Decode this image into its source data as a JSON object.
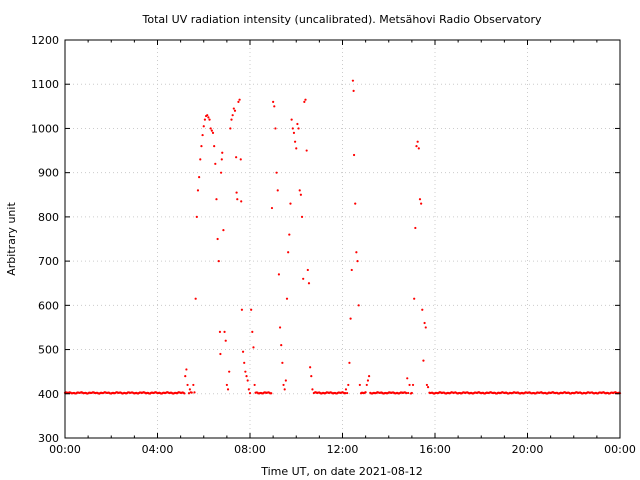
{
  "chart_data": {
    "type": "scatter",
    "title": "Total UV radiation intensity (uncalibrated). Metsähovi Radio Observatory",
    "xlabel": "Time UT, on date 2021-08-12",
    "ylabel": "Arbitrary unit",
    "xlim": [
      0,
      24
    ],
    "ylim": [
      300,
      1200
    ],
    "xticks": [
      0,
      4,
      8,
      12,
      16,
      20,
      24
    ],
    "xtick_labels": [
      "00:00",
      "04:00",
      "08:00",
      "12:00",
      "16:00",
      "20:00",
      "00:00"
    ],
    "yticks": [
      300,
      400,
      500,
      600,
      700,
      800,
      900,
      1000,
      1100,
      1200
    ],
    "ytick_labels": [
      "300",
      "400",
      "500",
      "600",
      "700",
      "800",
      "900",
      "1000",
      "1100",
      "1200"
    ],
    "grid": true,
    "legend": "none",
    "colors": {
      "series": "#ff0000",
      "grid": "#cccccc",
      "axes": "#000000"
    },
    "series": [
      {
        "baseline": 402,
        "points": [
          [
            5.2,
            440
          ],
          [
            5.25,
            455
          ],
          [
            5.3,
            420
          ],
          [
            5.4,
            410
          ],
          [
            5.55,
            420
          ],
          [
            5.65,
            615
          ],
          [
            5.7,
            800
          ],
          [
            5.75,
            860
          ],
          [
            5.8,
            890
          ],
          [
            5.85,
            930
          ],
          [
            5.9,
            960
          ],
          [
            5.95,
            985
          ],
          [
            6.0,
            1005
          ],
          [
            6.05,
            1020
          ],
          [
            6.1,
            1028
          ],
          [
            6.15,
            1030
          ],
          [
            6.2,
            1025
          ],
          [
            6.25,
            1020
          ],
          [
            6.3,
            1000
          ],
          [
            6.35,
            995
          ],
          [
            6.4,
            990
          ],
          [
            6.45,
            960
          ],
          [
            6.5,
            920
          ],
          [
            6.55,
            840
          ],
          [
            6.6,
            750
          ],
          [
            6.65,
            700
          ],
          [
            6.7,
            540
          ],
          [
            6.72,
            490
          ],
          [
            6.75,
            900
          ],
          [
            6.78,
            930
          ],
          [
            6.8,
            945
          ],
          [
            6.85,
            770
          ],
          [
            6.9,
            540
          ],
          [
            6.95,
            520
          ],
          [
            7.0,
            420
          ],
          [
            7.05,
            410
          ],
          [
            7.1,
            450
          ],
          [
            7.15,
            1000
          ],
          [
            7.2,
            1020
          ],
          [
            7.25,
            1030
          ],
          [
            7.3,
            1045
          ],
          [
            7.35,
            1040
          ],
          [
            7.4,
            935
          ],
          [
            7.42,
            855
          ],
          [
            7.45,
            840
          ],
          [
            7.5,
            1060
          ],
          [
            7.55,
            1065
          ],
          [
            7.6,
            930
          ],
          [
            7.62,
            835
          ],
          [
            7.65,
            590
          ],
          [
            7.7,
            495
          ],
          [
            7.75,
            470
          ],
          [
            7.8,
            450
          ],
          [
            7.85,
            440
          ],
          [
            7.9,
            430
          ],
          [
            7.95,
            410
          ],
          [
            8.05,
            590
          ],
          [
            8.1,
            540
          ],
          [
            8.15,
            505
          ],
          [
            8.2,
            420
          ],
          [
            8.95,
            820
          ],
          [
            9.0,
            1060
          ],
          [
            9.05,
            1050
          ],
          [
            9.1,
            1000
          ],
          [
            9.15,
            900
          ],
          [
            9.2,
            860
          ],
          [
            9.25,
            670
          ],
          [
            9.3,
            550
          ],
          [
            9.35,
            510
          ],
          [
            9.4,
            470
          ],
          [
            9.45,
            420
          ],
          [
            9.5,
            410
          ],
          [
            9.55,
            430
          ],
          [
            9.6,
            615
          ],
          [
            9.65,
            720
          ],
          [
            9.7,
            760
          ],
          [
            9.75,
            830
          ],
          [
            9.8,
            1020
          ],
          [
            9.85,
            1000
          ],
          [
            9.9,
            990
          ],
          [
            9.95,
            970
          ],
          [
            10.0,
            955
          ],
          [
            10.05,
            1010
          ],
          [
            10.1,
            1000
          ],
          [
            10.15,
            860
          ],
          [
            10.2,
            850
          ],
          [
            10.25,
            800
          ],
          [
            10.3,
            660
          ],
          [
            10.35,
            1060
          ],
          [
            10.4,
            1065
          ],
          [
            10.45,
            950
          ],
          [
            10.5,
            680
          ],
          [
            10.55,
            650
          ],
          [
            10.6,
            460
          ],
          [
            10.65,
            440
          ],
          [
            10.7,
            410
          ],
          [
            12.15,
            410
          ],
          [
            12.25,
            420
          ],
          [
            12.3,
            470
          ],
          [
            12.35,
            570
          ],
          [
            12.4,
            680
          ],
          [
            12.45,
            1108
          ],
          [
            12.48,
            1085
          ],
          [
            12.5,
            940
          ],
          [
            12.55,
            830
          ],
          [
            12.6,
            720
          ],
          [
            12.65,
            700
          ],
          [
            12.7,
            600
          ],
          [
            12.75,
            420
          ],
          [
            13.05,
            420
          ],
          [
            13.1,
            430
          ],
          [
            13.15,
            440
          ],
          [
            14.8,
            435
          ],
          [
            14.9,
            420
          ],
          [
            15.05,
            420
          ],
          [
            15.1,
            615
          ],
          [
            15.15,
            775
          ],
          [
            15.2,
            960
          ],
          [
            15.25,
            970
          ],
          [
            15.3,
            955
          ],
          [
            15.35,
            840
          ],
          [
            15.4,
            830
          ],
          [
            15.45,
            590
          ],
          [
            15.5,
            475
          ],
          [
            15.55,
            560
          ],
          [
            15.6,
            550
          ],
          [
            15.65,
            420
          ],
          [
            15.7,
            415
          ]
        ]
      }
    ]
  }
}
